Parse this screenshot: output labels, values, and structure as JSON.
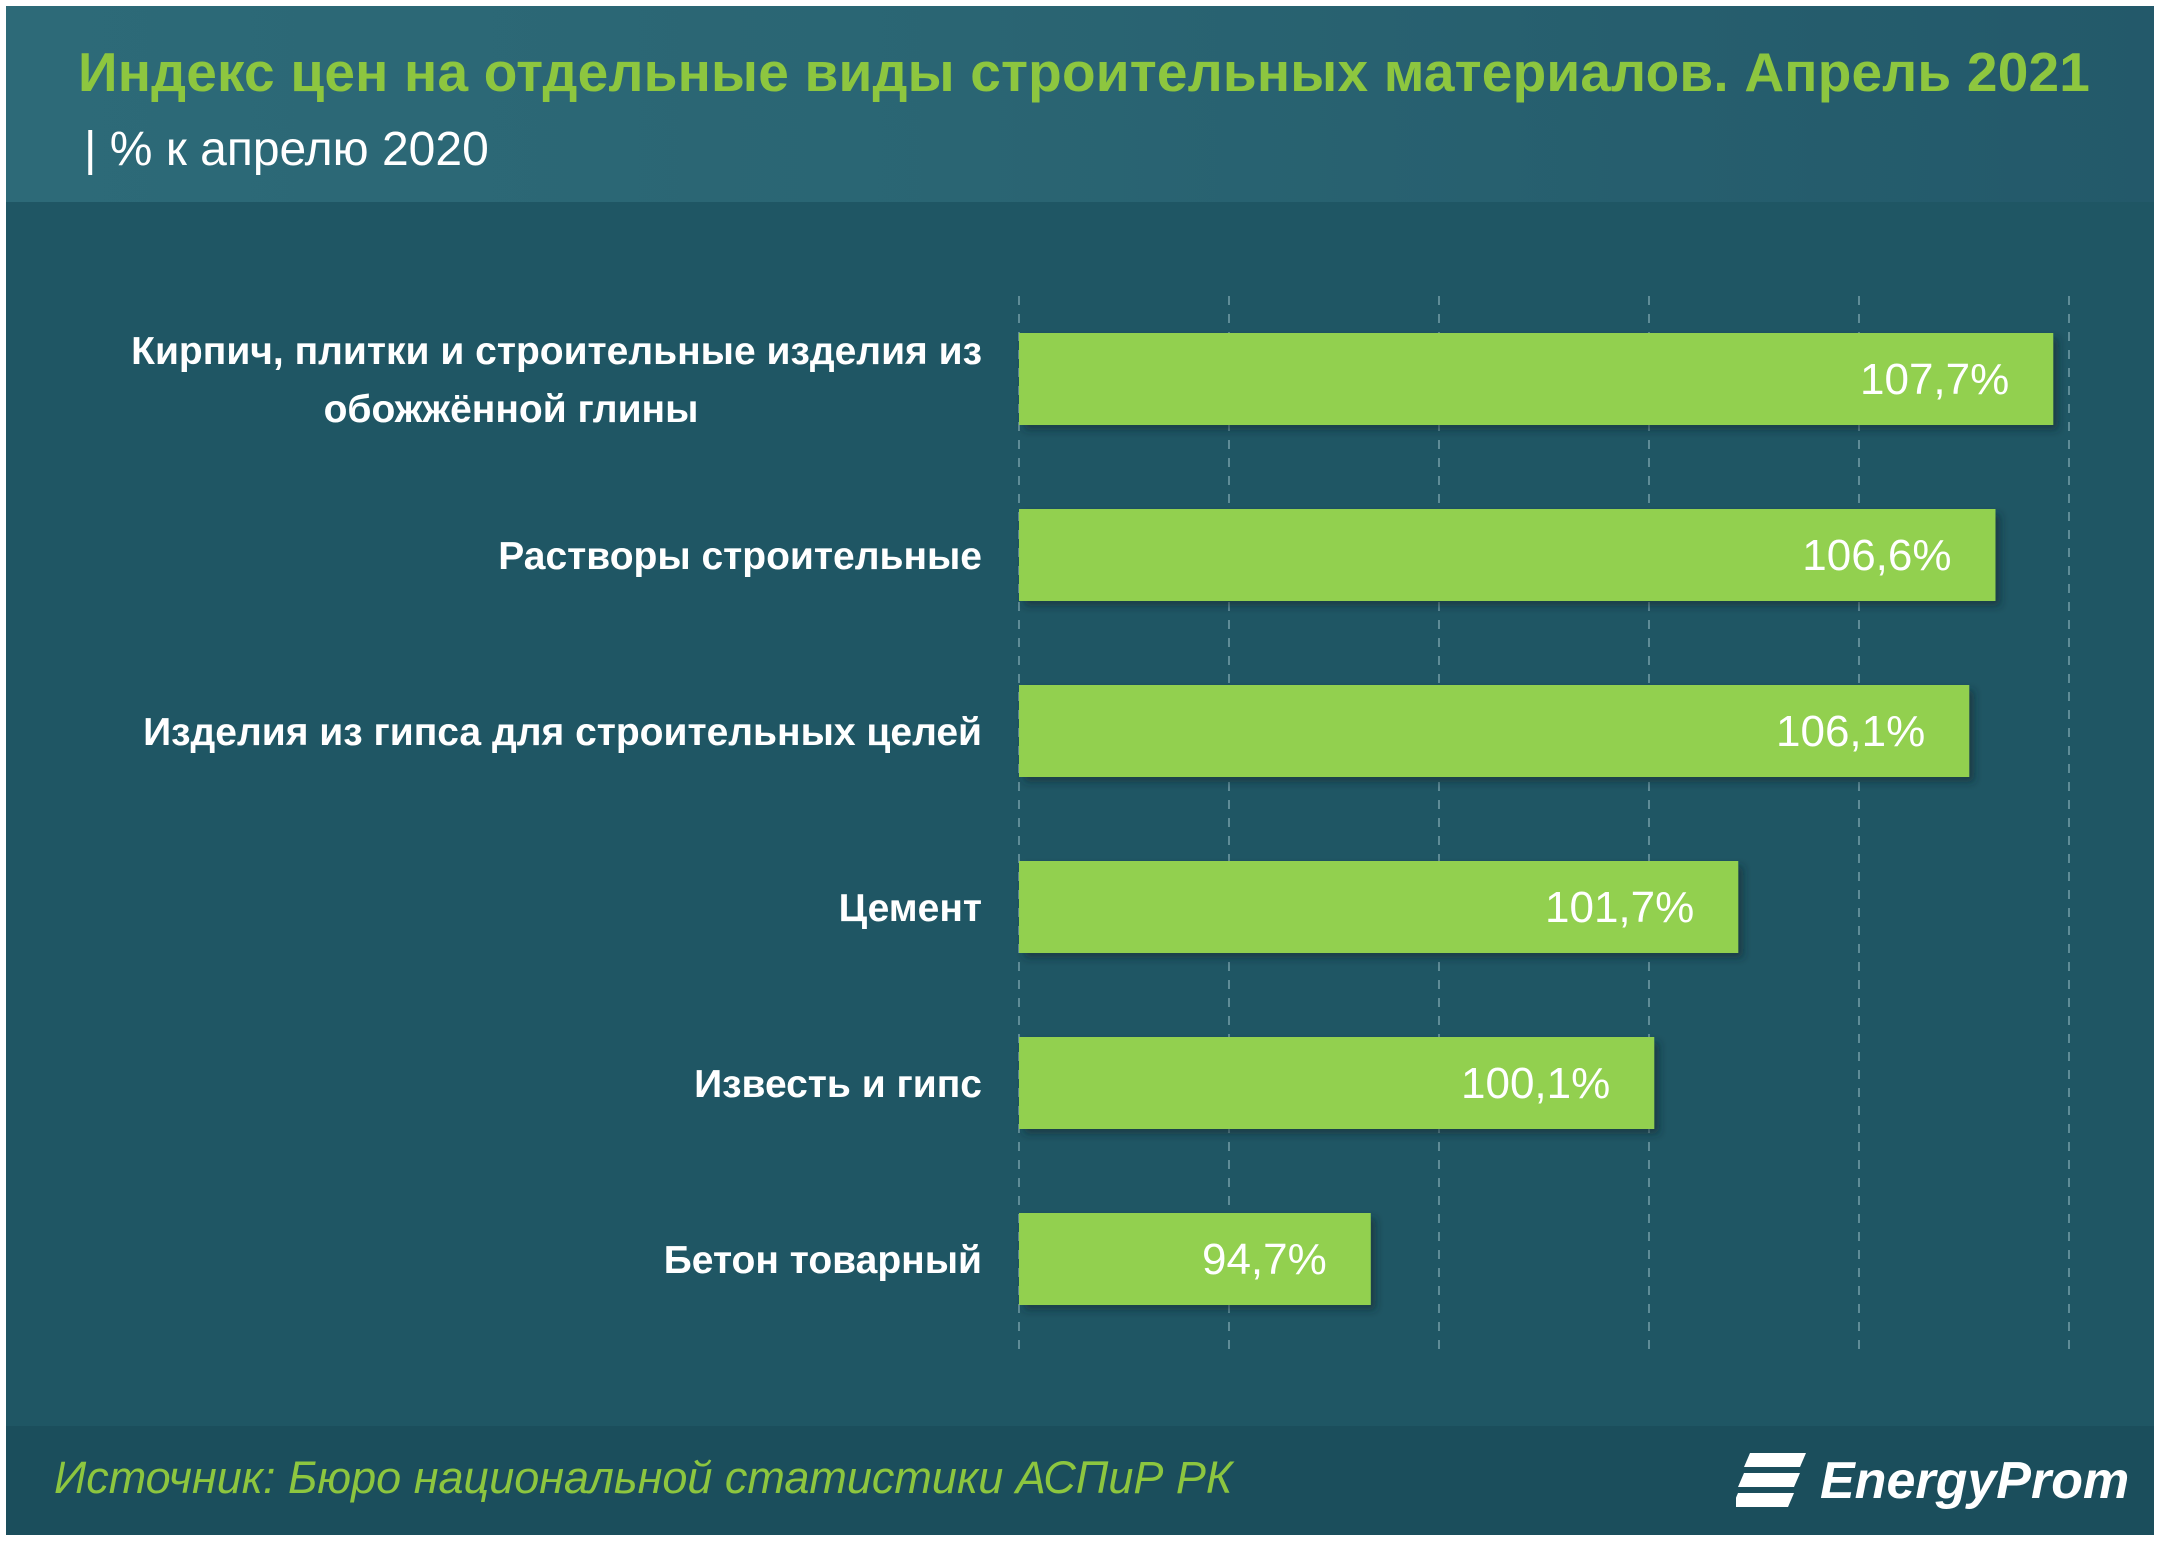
{
  "header": {
    "title": "Индекс цен на отдельные виды строительных материалов. Апрель 2021",
    "subtitle": "| % к апрелю 2020"
  },
  "chart_data": {
    "type": "bar",
    "orientation": "horizontal",
    "title": "Индекс цен на отдельные виды строительных материалов. Апрель 2021",
    "subtitle": "% к апрелю 2020",
    "categories": [
      [
        "Кирпич, плитки и строительные изделия из",
        "обожжённой глины"
      ],
      [
        "Растворы строительные"
      ],
      [
        "Изделия из гипса для строительных целей"
      ],
      [
        "Цемент"
      ],
      [
        "Известь и гипс"
      ],
      [
        "Бетон товарный"
      ]
    ],
    "values": [
      107.7,
      106.6,
      106.1,
      101.7,
      100.1,
      94.7
    ],
    "value_labels": [
      "107,7%",
      "106,6%",
      "106,1%",
      "101,7%",
      "100,1%",
      "94,7%"
    ],
    "xlim": [
      88,
      108
    ],
    "gridlines": "dashed vertical",
    "bar_color": "#92d050",
    "label_color": "#ffffff"
  },
  "footer": {
    "source": "Источник: Бюро национальной  статистики АСПиР РК",
    "logo_text": "EnergyProm"
  },
  "colors": {
    "background": "#1f5664",
    "accent": "#8dc63f",
    "bar": "#92d050"
  }
}
